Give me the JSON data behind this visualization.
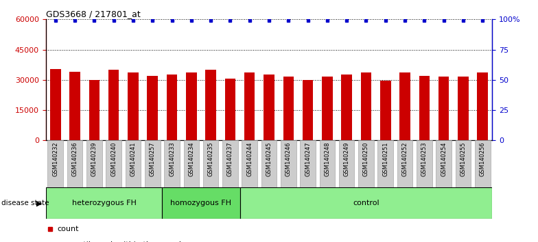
{
  "title": "GDS3668 / 217801_at",
  "samples": [
    "GSM140232",
    "GSM140236",
    "GSM140239",
    "GSM140240",
    "GSM140241",
    "GSM140257",
    "GSM140233",
    "GSM140234",
    "GSM140235",
    "GSM140237",
    "GSM140244",
    "GSM140245",
    "GSM140246",
    "GSM140247",
    "GSM140248",
    "GSM140249",
    "GSM140250",
    "GSM140251",
    "GSM140252",
    "GSM140253",
    "GSM140254",
    "GSM140255",
    "GSM140256"
  ],
  "counts": [
    35500,
    34000,
    30000,
    35000,
    33500,
    32000,
    32500,
    33500,
    35000,
    30500,
    33500,
    32500,
    31500,
    30000,
    31500,
    32500,
    33500,
    29500,
    33500,
    32000,
    31500,
    31500,
    33500
  ],
  "percentile": [
    99,
    99,
    99,
    99,
    99,
    99,
    99,
    99,
    99,
    99,
    99,
    99,
    99,
    99,
    99,
    99,
    99,
    99,
    99,
    99,
    99,
    99,
    99
  ],
  "groups": [
    {
      "label": "heterozygous FH",
      "start": 0,
      "end": 6,
      "color": "#90ee90"
    },
    {
      "label": "homozygous FH",
      "start": 6,
      "end": 10,
      "color": "#66dd66"
    },
    {
      "label": "control",
      "start": 10,
      "end": 23,
      "color": "#90ee90"
    }
  ],
  "ylim_left": [
    0,
    60000
  ],
  "yticks_left": [
    0,
    15000,
    30000,
    45000,
    60000
  ],
  "ylim_right": [
    0,
    100
  ],
  "yticks_right": [
    0,
    25,
    50,
    75,
    100
  ],
  "bar_color": "#cc0000",
  "percentile_color": "#0000cc",
  "bar_width": 0.55,
  "background_color": "#ffffff",
  "tick_label_bg": "#cccccc",
  "n_groups": 23
}
